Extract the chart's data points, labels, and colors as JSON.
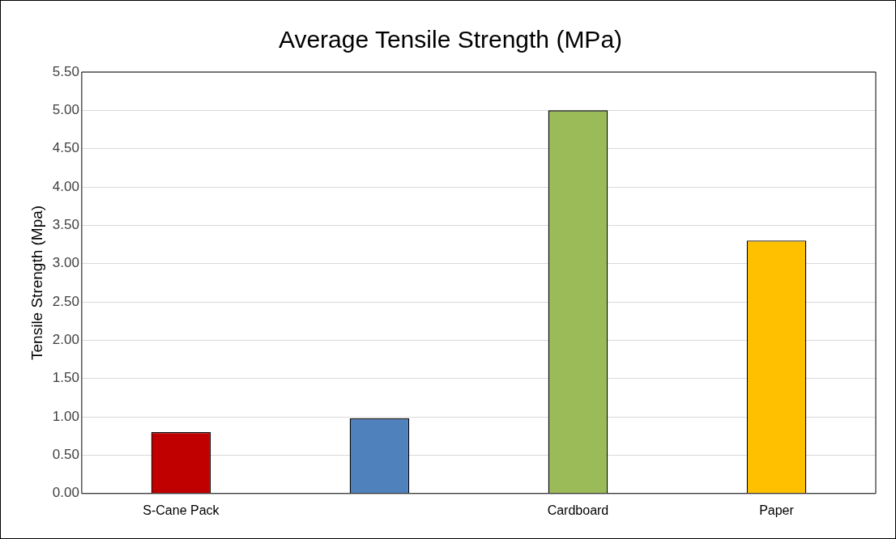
{
  "chart_data": {
    "type": "bar",
    "title": "Average Tensile Strength (MPa)",
    "ylabel": "Tensile Strength (Mpa)",
    "categories": [
      "S-Cane Pack",
      null,
      "Cardboard",
      "Paper"
    ],
    "values": [
      0.8,
      0.98,
      5.0,
      3.3
    ],
    "colors": [
      "#c00000",
      "#4f81bd",
      "#9bbb59",
      "#ffc000"
    ],
    "ylim": [
      0,
      5.5
    ],
    "yticks": [
      {
        "value": 0,
        "label": "0.00"
      },
      {
        "value": 0.5,
        "label": "0.50"
      },
      {
        "value": 1,
        "label": "1.00"
      },
      {
        "value": 1.5,
        "label": "1.50"
      },
      {
        "value": 2,
        "label": "2.00"
      },
      {
        "value": 2.5,
        "label": "2.50"
      },
      {
        "value": 3,
        "label": "3.00"
      },
      {
        "value": 3.5,
        "label": "3.50"
      },
      {
        "value": 4,
        "label": "4.00"
      },
      {
        "value": 4.5,
        "label": "4.50"
      },
      {
        "value": 5,
        "label": "5.00"
      },
      {
        "value": 5.5,
        "label": "5.50"
      }
    ],
    "grid": "y",
    "legend": false
  }
}
